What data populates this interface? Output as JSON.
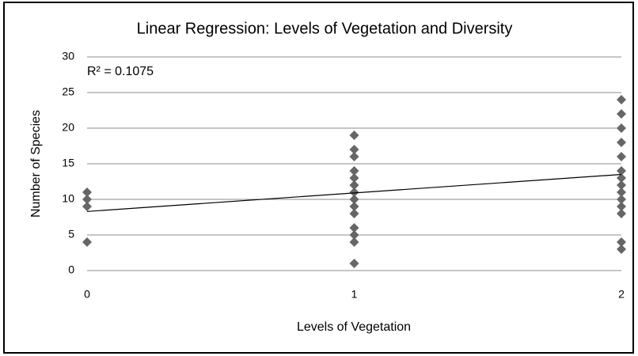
{
  "chart_data": {
    "type": "scatter",
    "title": "Linear Regression: Levels of Vegetation and Diversity",
    "xlabel": "Levels of Vegetation",
    "ylabel": "Number of Species",
    "annotation": "R² = 0.1075",
    "color": "#666666",
    "x": [
      0,
      0,
      0,
      0,
      1,
      1,
      1,
      1,
      1,
      1,
      1,
      1,
      1,
      1,
      1,
      1,
      1,
      1,
      2,
      2,
      2,
      2,
      2,
      2,
      2,
      2,
      2,
      2,
      2,
      2,
      2,
      2
    ],
    "values": [
      11,
      10,
      9,
      4,
      19,
      17,
      16,
      14,
      13,
      12,
      11,
      10,
      9,
      8,
      6,
      5,
      4,
      1,
      24,
      22,
      20,
      18,
      16,
      14,
      13,
      12,
      11,
      10,
      9,
      8,
      4,
      3
    ],
    "trendline": {
      "x": [
        0,
        2
      ],
      "y": [
        8.3,
        13.5
      ]
    },
    "xlim": [
      0,
      2
    ],
    "xticks": [
      0,
      1,
      2
    ],
    "ylim": [
      0,
      30
    ],
    "yticks": [
      0,
      5,
      10,
      15,
      20,
      25,
      30
    ],
    "grid": true
  }
}
